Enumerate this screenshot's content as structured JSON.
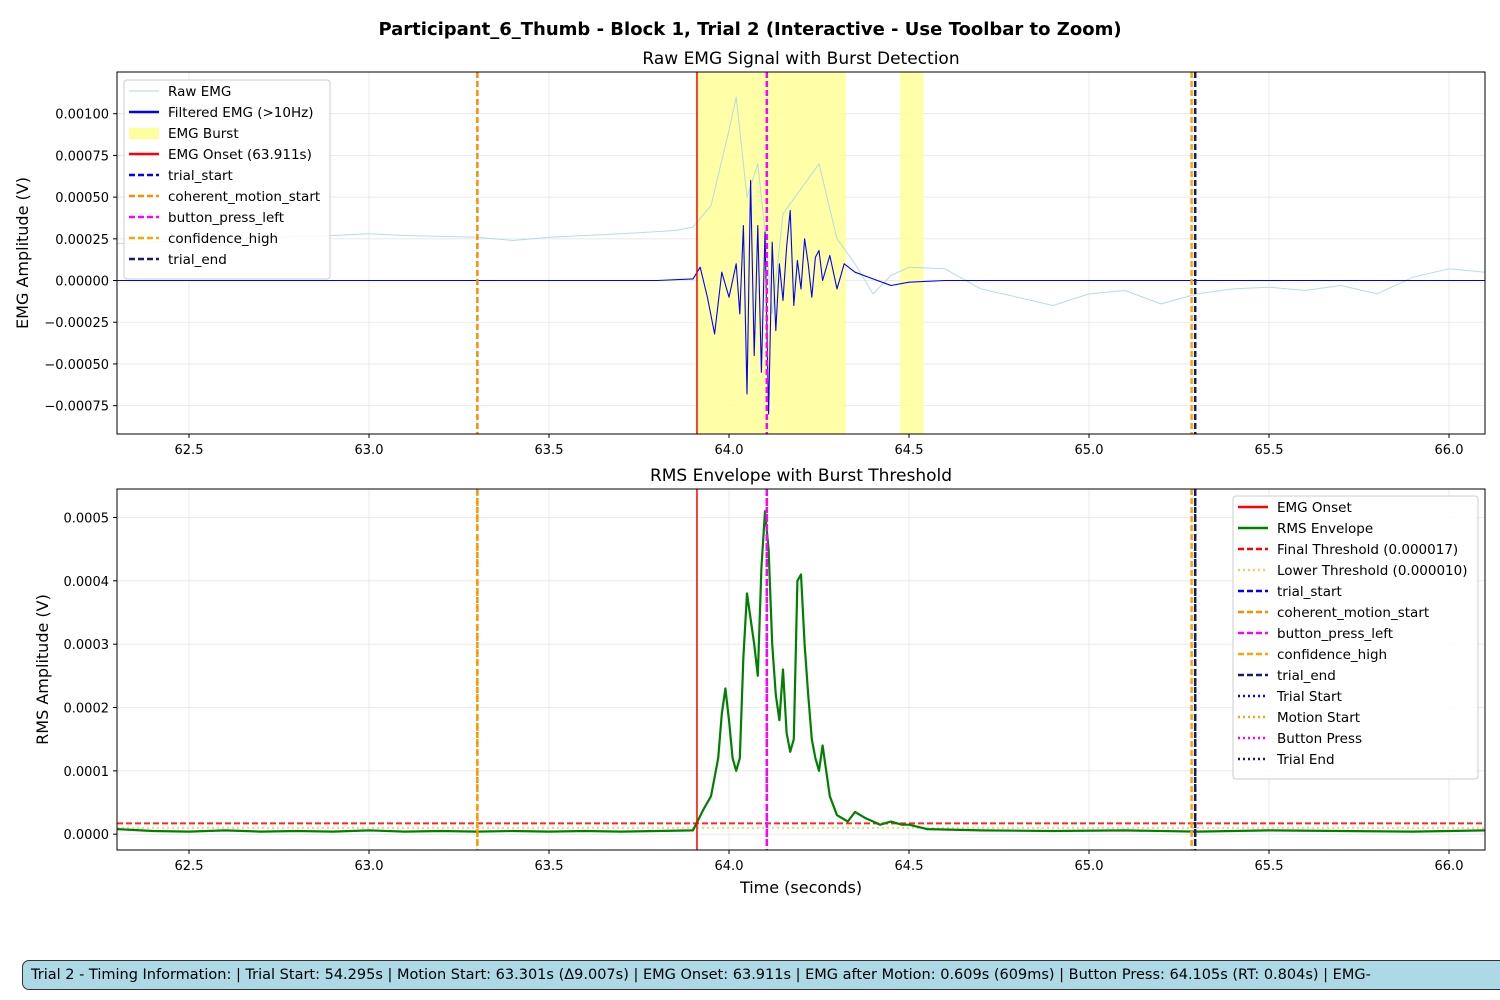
{
  "figure": {
    "suptitle": "Participant_6_Thumb - Block 1, Trial 2 (Interactive - Use Toolbar to Zoom)",
    "info_text": "Trial 2 - Timing Information:  |  Trial Start: 54.295s  |  Motion Start: 63.301s (Δ9.007s)  |  EMG Onset: 63.911s  |  EMG after Motion: 0.609s (609ms)  |  Button Press: 64.105s (RT: 0.804s)  |  EMG-"
  },
  "chart_data": [
    {
      "type": "line",
      "title": "Raw EMG Signal with Burst Detection",
      "xlabel": "",
      "ylabel": "EMG Amplitude (V)",
      "xlim": [
        62.3,
        66.1
      ],
      "ylim": [
        -0.00092,
        0.00125
      ],
      "xticks": [
        62.5,
        63.0,
        63.5,
        64.0,
        64.5,
        65.0,
        65.5,
        66.0
      ],
      "xtick_labels": [
        "62.5",
        "63.0",
        "63.5",
        "64.0",
        "64.5",
        "65.0",
        "65.5",
        "66.0"
      ],
      "yticks": [
        -0.00075,
        -0.0005,
        -0.00025,
        0.0,
        0.00025,
        0.0005,
        0.00075,
        0.001
      ],
      "ytick_labels": [
        "−0.00075",
        "−0.00050",
        "−0.00025",
        "0.00000",
        "0.00025",
        "0.00050",
        "0.00075",
        "0.00100"
      ],
      "grid": true,
      "legend_position": "upper-left",
      "colors": {
        "raw": "#add8e6",
        "filtered": "#0000ff",
        "burst": "#ffff99",
        "onset": "#ff0000"
      },
      "burst_spans": [
        [
          63.911,
          64.325
        ],
        [
          64.475,
          64.54
        ]
      ],
      "vlines": [
        {
          "x": 63.911,
          "color": "#ff0000",
          "style": "solid",
          "label": "EMG Onset (63.911s)"
        },
        {
          "x": 63.301,
          "color": "#ff8c00",
          "style": "dashed",
          "label": "coherent_motion_start"
        },
        {
          "x": 64.105,
          "color": "#ff00ff",
          "style": "dashed",
          "label": "button_press_left"
        },
        {
          "x": 65.285,
          "color": "#ffa500",
          "style": "dashed",
          "label": "confidence_high"
        },
        {
          "x": 65.295,
          "color": "#191970",
          "style": "dashed",
          "label": "trial_end"
        }
      ],
      "series": [
        {
          "name": "Raw EMG",
          "color": "#add8e6",
          "x": [
            62.3,
            62.5,
            62.7,
            62.9,
            63.0,
            63.1,
            63.3,
            63.4,
            63.5,
            63.7,
            63.85,
            63.9,
            63.95,
            64.0,
            64.02,
            64.05,
            64.08,
            64.1,
            64.12,
            64.15,
            64.2,
            64.25,
            64.3,
            64.35,
            64.4,
            64.45,
            64.5,
            64.6,
            64.7,
            64.8,
            64.9,
            65.0,
            65.1,
            65.2,
            65.3,
            65.4,
            65.5,
            65.6,
            65.7,
            65.8,
            65.9,
            66.0,
            66.1
          ],
          "y": [
            0.00022,
            0.00024,
            0.00026,
            0.00027,
            0.00028,
            0.00027,
            0.00026,
            0.00024,
            0.00026,
            0.00028,
            0.0003,
            0.00032,
            0.00045,
            0.0009,
            0.0011,
            0.0005,
            0.0007,
            0.0003,
            -0.0002,
            0.0004,
            0.00055,
            0.0007,
            0.00025,
            0.0001,
            -8e-05,
            3e-05,
            8e-05,
            7e-05,
            -5e-05,
            -0.0001,
            -0.00015,
            -8e-05,
            -6e-05,
            -0.00014,
            -8e-05,
            -5e-05,
            -4e-05,
            -6e-05,
            -3e-05,
            -8e-05,
            2e-05,
            7e-05,
            5e-05
          ]
        },
        {
          "name": "Filtered EMG (>10Hz)",
          "color": "#0000ff",
          "x": [
            62.3,
            62.6,
            62.9,
            63.2,
            63.5,
            63.8,
            63.9,
            63.92,
            63.94,
            63.96,
            63.98,
            64.0,
            64.02,
            64.03,
            64.04,
            64.05,
            64.06,
            64.07,
            64.08,
            64.09,
            64.1,
            64.11,
            64.12,
            64.13,
            64.14,
            64.15,
            64.16,
            64.17,
            64.18,
            64.19,
            64.2,
            64.21,
            64.22,
            64.23,
            64.24,
            64.25,
            64.26,
            64.28,
            64.3,
            64.32,
            64.35,
            64.4,
            64.45,
            64.5,
            64.6,
            64.8,
            65.0,
            65.3,
            65.6,
            66.1
          ],
          "y": [
            0.0,
            0.0,
            0.0,
            0.0,
            0.0,
            0.0,
            1e-05,
            8e-05,
            -0.0001,
            -0.00032,
            5e-05,
            -0.0001,
            0.0001,
            -0.0002,
            0.00033,
            -0.00068,
            0.0006,
            -0.00045,
            0.00033,
            -0.00055,
            0.00029,
            -0.0008,
            0.00023,
            -0.0003,
            0.0001,
            -0.00012,
            0.0002,
            0.00042,
            -0.00015,
            0.00012,
            -5e-05,
            0.00025,
            0.0001,
            -0.0001,
            0.00014,
            0.00018,
            0.0,
            0.00015,
            -5e-05,
            0.0001,
            5e-05,
            1e-05,
            -3e-05,
            -1e-05,
            0.0,
            0.0,
            0.0,
            0.0,
            0.0,
            0.0
          ]
        }
      ]
    },
    {
      "type": "line",
      "title": "RMS Envelope with Burst Threshold",
      "xlabel": "Time (seconds)",
      "ylabel": "RMS Amplitude (V)",
      "xlim": [
        62.3,
        66.1
      ],
      "ylim": [
        -2.5e-05,
        0.000545
      ],
      "xticks": [
        62.5,
        63.0,
        63.5,
        64.0,
        64.5,
        65.0,
        65.5,
        66.0
      ],
      "xtick_labels": [
        "62.5",
        "63.0",
        "63.5",
        "64.0",
        "64.5",
        "65.0",
        "65.5",
        "66.0"
      ],
      "yticks": [
        0.0,
        0.0001,
        0.0002,
        0.0003,
        0.0004,
        0.0005
      ],
      "ytick_labels": [
        "0.0000",
        "0.0001",
        "0.0002",
        "0.0003",
        "0.0004",
        "0.0005"
      ],
      "grid": true,
      "legend_position": "upper-right",
      "hlines": [
        {
          "y": 1.7e-05,
          "color": "#ff0000",
          "style": "dashed",
          "label": "Final Threshold (0.000017)"
        },
        {
          "y": 1e-05,
          "color": "#f0d060",
          "style": "dotted",
          "label": "Lower Threshold (0.000010)"
        }
      ],
      "vlines": [
        {
          "x": 63.911,
          "color": "#ff0000",
          "style": "solid",
          "label": "EMG Onset"
        },
        {
          "x": 63.301,
          "color": "#ff8c00",
          "style": "dashed",
          "label": "coherent_motion_start"
        },
        {
          "x": 63.301,
          "color": "#ffa500",
          "style": "dotted",
          "label": "Motion Start"
        },
        {
          "x": 64.105,
          "color": "#ff00ff",
          "style": "dashed",
          "label": "button_press_left"
        },
        {
          "x": 64.105,
          "color": "#ff00ff",
          "style": "dotted",
          "label": "Button Press"
        },
        {
          "x": 65.285,
          "color": "#ffa500",
          "style": "dashed",
          "label": "confidence_high"
        },
        {
          "x": 65.295,
          "color": "#191970",
          "style": "dashed",
          "label": "trial_end"
        },
        {
          "x": 65.295,
          "color": "#191970",
          "style": "dotted",
          "label": "Trial End"
        }
      ],
      "series": [
        {
          "name": "RMS Envelope",
          "color": "#008000",
          "x": [
            62.3,
            62.4,
            62.5,
            62.6,
            62.7,
            62.8,
            62.9,
            63.0,
            63.1,
            63.2,
            63.3,
            63.4,
            63.5,
            63.6,
            63.7,
            63.8,
            63.9,
            63.93,
            63.95,
            63.97,
            63.98,
            63.99,
            64.0,
            64.01,
            64.02,
            64.03,
            64.04,
            64.05,
            64.06,
            64.07,
            64.08,
            64.09,
            64.1,
            64.11,
            64.12,
            64.13,
            64.14,
            64.15,
            64.16,
            64.17,
            64.18,
            64.19,
            64.2,
            64.21,
            64.22,
            64.23,
            64.24,
            64.25,
            64.26,
            64.27,
            64.28,
            64.3,
            64.33,
            64.35,
            64.38,
            64.4,
            64.42,
            64.45,
            64.48,
            64.5,
            64.55,
            64.7,
            64.9,
            65.1,
            65.3,
            65.5,
            65.7,
            65.9,
            66.1
          ],
          "y": [
            8e-06,
            5e-06,
            4e-06,
            6e-06,
            4e-06,
            5e-06,
            4e-06,
            6e-06,
            4e-06,
            5e-06,
            4e-06,
            5e-06,
            4e-06,
            5e-06,
            4e-06,
            5e-06,
            6e-06,
            4e-05,
            6e-05,
            0.00012,
            0.00019,
            0.00023,
            0.00018,
            0.00012,
            0.0001,
            0.00012,
            0.00028,
            0.00038,
            0.00034,
            0.0003,
            0.00025,
            0.00042,
            0.00051,
            0.00045,
            0.0003,
            0.00022,
            0.00018,
            0.00026,
            0.00016,
            0.00013,
            0.00015,
            0.0004,
            0.00041,
            0.0003,
            0.00022,
            0.00015,
            0.00012,
            0.0001,
            0.00014,
            0.0001,
            6e-05,
            3e-05,
            2e-05,
            3.5e-05,
            2.5e-05,
            2e-05,
            1.5e-05,
            2e-05,
            1.5e-05,
            1.5e-05,
            8e-06,
            6e-06,
            5e-06,
            6e-06,
            4e-06,
            6e-06,
            5e-06,
            4e-06,
            6e-06
          ]
        }
      ]
    }
  ],
  "legends": {
    "top": [
      {
        "label": "Raw EMG",
        "kind": "line",
        "color": "#add8e6",
        "dash": ""
      },
      {
        "label": "Filtered EMG (>10Hz)",
        "kind": "line",
        "color": "#0000ff",
        "dash": ""
      },
      {
        "label": "EMG Burst",
        "kind": "patch",
        "color": "#ffff99",
        "dash": ""
      },
      {
        "label": "EMG Onset (63.911s)",
        "kind": "line",
        "color": "#ff0000",
        "dash": ""
      },
      {
        "label": "trial_start",
        "kind": "line",
        "color": "#0000ff",
        "dash": "6,3"
      },
      {
        "label": "coherent_motion_start",
        "kind": "line",
        "color": "#ff8c00",
        "dash": "6,3"
      },
      {
        "label": "button_press_left",
        "kind": "line",
        "color": "#ff00ff",
        "dash": "6,3"
      },
      {
        "label": "confidence_high",
        "kind": "line",
        "color": "#ffa500",
        "dash": "6,3"
      },
      {
        "label": "trial_end",
        "kind": "line",
        "color": "#191970",
        "dash": "6,3"
      }
    ],
    "bottom": [
      {
        "label": "EMG Onset",
        "kind": "line",
        "color": "#ff0000",
        "dash": ""
      },
      {
        "label": "RMS Envelope",
        "kind": "line",
        "color": "#008000",
        "dash": ""
      },
      {
        "label": "Final Threshold (0.000017)",
        "kind": "line",
        "color": "#ff0000",
        "dash": "6,3"
      },
      {
        "label": "Lower Threshold (0.000010)",
        "kind": "line",
        "color": "#f0d060",
        "dash": "2,3"
      },
      {
        "label": "trial_start",
        "kind": "line",
        "color": "#0000ff",
        "dash": "6,3"
      },
      {
        "label": "coherent_motion_start",
        "kind": "line",
        "color": "#ff8c00",
        "dash": "6,3"
      },
      {
        "label": "button_press_left",
        "kind": "line",
        "color": "#ff00ff",
        "dash": "6,3"
      },
      {
        "label": "confidence_high",
        "kind": "line",
        "color": "#ffa500",
        "dash": "6,3"
      },
      {
        "label": "trial_end",
        "kind": "line",
        "color": "#191970",
        "dash": "6,3"
      },
      {
        "label": "Trial Start",
        "kind": "line",
        "color": "#0000ff",
        "dash": "2,3"
      },
      {
        "label": "Motion Start",
        "kind": "line",
        "color": "#ffa500",
        "dash": "2,3"
      },
      {
        "label": "Button Press",
        "kind": "line",
        "color": "#ff00ff",
        "dash": "2,3"
      },
      {
        "label": "Trial End",
        "kind": "line",
        "color": "#191970",
        "dash": "2,3"
      }
    ]
  }
}
